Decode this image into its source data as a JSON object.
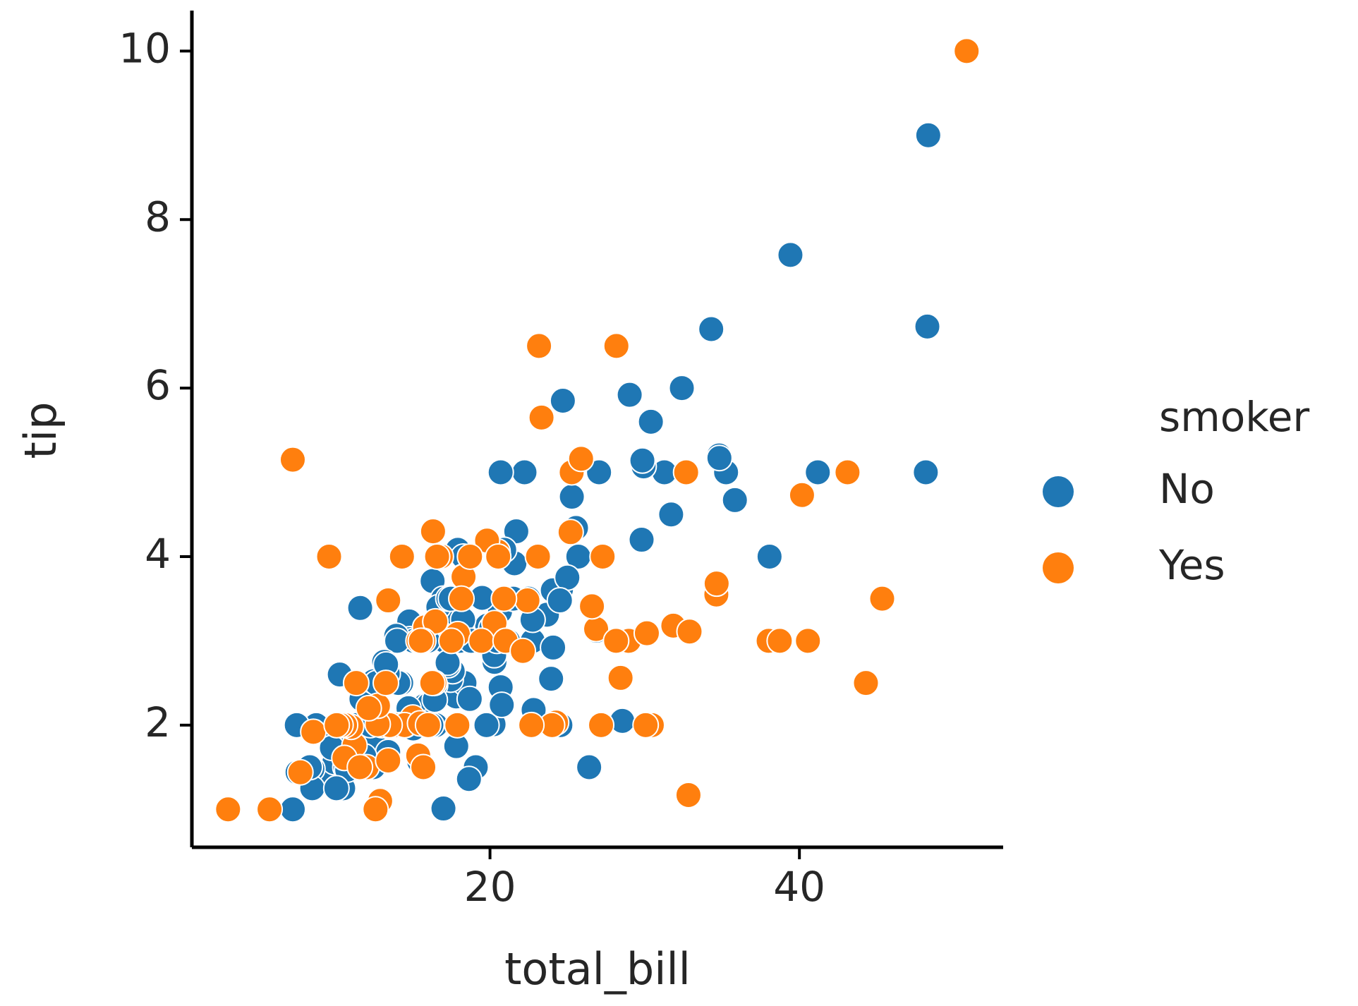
{
  "chart_data": {
    "type": "scatter",
    "x_label": "total_bill",
    "y_label": "tip",
    "legend_title": "smoker",
    "legend": "right",
    "xlim": [
      0.73,
      53.17
    ],
    "ylim": [
      0.55,
      10.48
    ],
    "xticks": [
      20,
      40
    ],
    "yticks": [
      2,
      4,
      6,
      8,
      10
    ],
    "series": [
      {
        "name": "No",
        "color": "#1f77b4",
        "x": [
          16.99,
          10.34,
          21.01,
          23.68,
          24.59,
          25.29,
          8.77,
          26.88,
          15.04,
          14.78,
          10.27,
          35.26,
          15.42,
          18.43,
          14.83,
          21.58,
          10.33,
          16.29,
          16.97,
          20.65,
          17.92,
          20.29,
          15.77,
          39.42,
          19.82,
          17.81,
          13.37,
          12.69,
          21.7,
          19.65,
          9.55,
          18.35,
          15.06,
          20.69,
          17.78,
          24.06,
          16.31,
          16.93,
          18.69,
          31.27,
          16.04,
          17.46,
          13.94,
          9.68,
          30.4,
          18.29,
          22.23,
          32.4,
          28.55,
          18.04,
          12.54,
          10.29,
          34.81,
          9.94,
          25.56,
          19.49,
          26.41,
          48.27,
          17.59,
          20.08,
          16.45,
          20.23,
          12.02,
          17.07,
          14.73,
          10.51,
          27.2,
          22.76,
          17.29,
          16.66,
          10.07,
          15.98,
          34.83,
          13.03,
          18.28,
          24.71,
          21.16,
          22.49,
          22.75,
          12.46,
          20.92,
          18.24,
          14.0,
          7.25,
          38.07,
          23.95,
          25.71,
          17.31,
          29.93,
          10.65,
          12.43,
          24.08,
          11.69,
          13.42,
          14.26,
          15.95,
          12.48,
          29.8,
          8.52,
          14.52,
          11.38,
          22.82,
          19.08,
          20.27,
          11.17,
          12.26,
          18.26,
          8.51,
          10.33,
          14.15,
          13.16,
          17.47,
          34.3,
          41.19,
          27.05,
          16.43,
          8.35,
          18.64,
          11.87,
          9.78,
          7.51,
          14.07,
          13.13,
          17.26,
          24.55,
          19.77,
          29.85,
          48.17,
          25.0,
          13.39,
          16.49,
          21.5,
          12.66,
          16.21,
          13.81,
          24.52,
          20.76,
          31.71,
          20.69,
          7.56,
          48.33,
          15.98,
          20.45,
          13.28,
          11.61,
          10.77,
          10.07,
          35.83,
          29.03,
          17.82,
          18.78
        ],
        "values": [
          1.01,
          1.66,
          3.5,
          3.31,
          3.61,
          4.71,
          2.0,
          3.12,
          1.96,
          3.23,
          1.71,
          5.0,
          1.57,
          3.0,
          3.02,
          3.92,
          1.67,
          3.71,
          3.5,
          3.35,
          4.08,
          2.75,
          2.23,
          7.58,
          3.18,
          2.34,
          2.0,
          2.0,
          4.3,
          3.0,
          1.45,
          2.5,
          3.0,
          2.45,
          3.27,
          3.6,
          2.0,
          3.07,
          2.31,
          5.0,
          2.24,
          2.54,
          3.06,
          1.32,
          5.6,
          3.0,
          5.0,
          6.0,
          2.05,
          3.0,
          2.5,
          2.6,
          5.2,
          1.56,
          4.34,
          3.51,
          1.5,
          6.73,
          2.64,
          3.15,
          2.47,
          2.01,
          1.97,
          3.0,
          2.2,
          1.25,
          4.0,
          3.0,
          2.71,
          3.4,
          1.83,
          2.03,
          5.17,
          2.0,
          4.0,
          5.85,
          3.0,
          3.5,
          3.25,
          1.5,
          4.08,
          3.76,
          3.0,
          1.0,
          4.0,
          2.55,
          4.0,
          3.5,
          5.07,
          1.5,
          1.8,
          2.92,
          2.31,
          1.68,
          2.5,
          2.0,
          2.52,
          4.2,
          1.48,
          2.0,
          2.0,
          2.18,
          1.5,
          2.83,
          1.5,
          2.0,
          3.25,
          1.25,
          2.0,
          2.0,
          2.75,
          3.5,
          6.7,
          5.0,
          5.0,
          2.3,
          1.5,
          1.36,
          1.63,
          1.73,
          2.0,
          2.5,
          2.0,
          2.74,
          2.0,
          2.0,
          5.14,
          5.0,
          3.75,
          2.61,
          2.0,
          3.5,
          2.5,
          2.0,
          2.0,
          3.48,
          2.24,
          4.5,
          5.0,
          1.44,
          9.0,
          3.0,
          3.0,
          2.72,
          3.39,
          1.47,
          1.25,
          4.67,
          5.92,
          1.75,
          3.0
        ]
      },
      {
        "name": "Yes",
        "color": "#ff7f0e",
        "x": [
          38.01,
          11.24,
          20.29,
          13.81,
          11.02,
          18.29,
          3.07,
          15.01,
          26.86,
          25.28,
          17.92,
          19.44,
          32.68,
          28.97,
          5.75,
          16.32,
          40.17,
          27.28,
          12.03,
          21.01,
          11.35,
          15.38,
          44.3,
          22.42,
          15.36,
          20.49,
          25.21,
          14.31,
          17.51,
          10.59,
          10.63,
          50.81,
          15.81,
          7.25,
          31.85,
          16.82,
          32.9,
          17.89,
          14.48,
          9.6,
          34.63,
          34.65,
          23.33,
          45.35,
          23.17,
          40.55,
          20.9,
          30.46,
          18.15,
          23.1,
          15.69,
          19.81,
          28.44,
          15.48,
          16.58,
          10.34,
          43.11,
          13.0,
          13.51,
          18.71,
          12.74,
          16.4,
          20.53,
          16.47,
          26.59,
          38.73,
          24.27,
          12.76,
          30.06,
          25.89,
          13.27,
          28.17,
          12.9,
          28.15,
          11.59,
          7.74,
          30.14,
          12.16,
          13.42,
          8.58,
          13.42,
          16.27,
          10.09,
          22.12,
          24.01,
          15.69,
          15.53,
          12.6,
          32.83,
          27.18,
          22.67,
          16.0
        ],
        "values": [
          3.0,
          1.76,
          3.21,
          2.0,
          1.98,
          3.76,
          1.0,
          2.09,
          3.14,
          5.0,
          3.08,
          3.0,
          5.0,
          3.0,
          1.0,
          4.3,
          4.73,
          4.0,
          1.5,
          3.0,
          2.5,
          3.0,
          2.5,
          3.48,
          1.64,
          4.06,
          4.29,
          4.0,
          3.0,
          1.61,
          2.0,
          10.0,
          3.16,
          5.15,
          3.18,
          4.0,
          3.11,
          2.0,
          2.0,
          4.0,
          3.55,
          3.68,
          5.65,
          3.5,
          6.5,
          3.0,
          3.5,
          2.0,
          3.5,
          4.0,
          1.5,
          4.19,
          2.56,
          2.02,
          4.0,
          2.0,
          5.0,
          2.0,
          2.0,
          4.0,
          2.01,
          2.5,
          4.0,
          3.23,
          3.41,
          3.0,
          2.03,
          2.23,
          2.0,
          5.16,
          2.5,
          6.5,
          1.1,
          3.0,
          1.5,
          1.44,
          3.09,
          2.2,
          3.48,
          1.92,
          1.58,
          2.5,
          2.0,
          2.88,
          2.0,
          3.0,
          3.0,
          1.0,
          1.17,
          2.0,
          2.0,
          2.0
        ]
      }
    ]
  }
}
